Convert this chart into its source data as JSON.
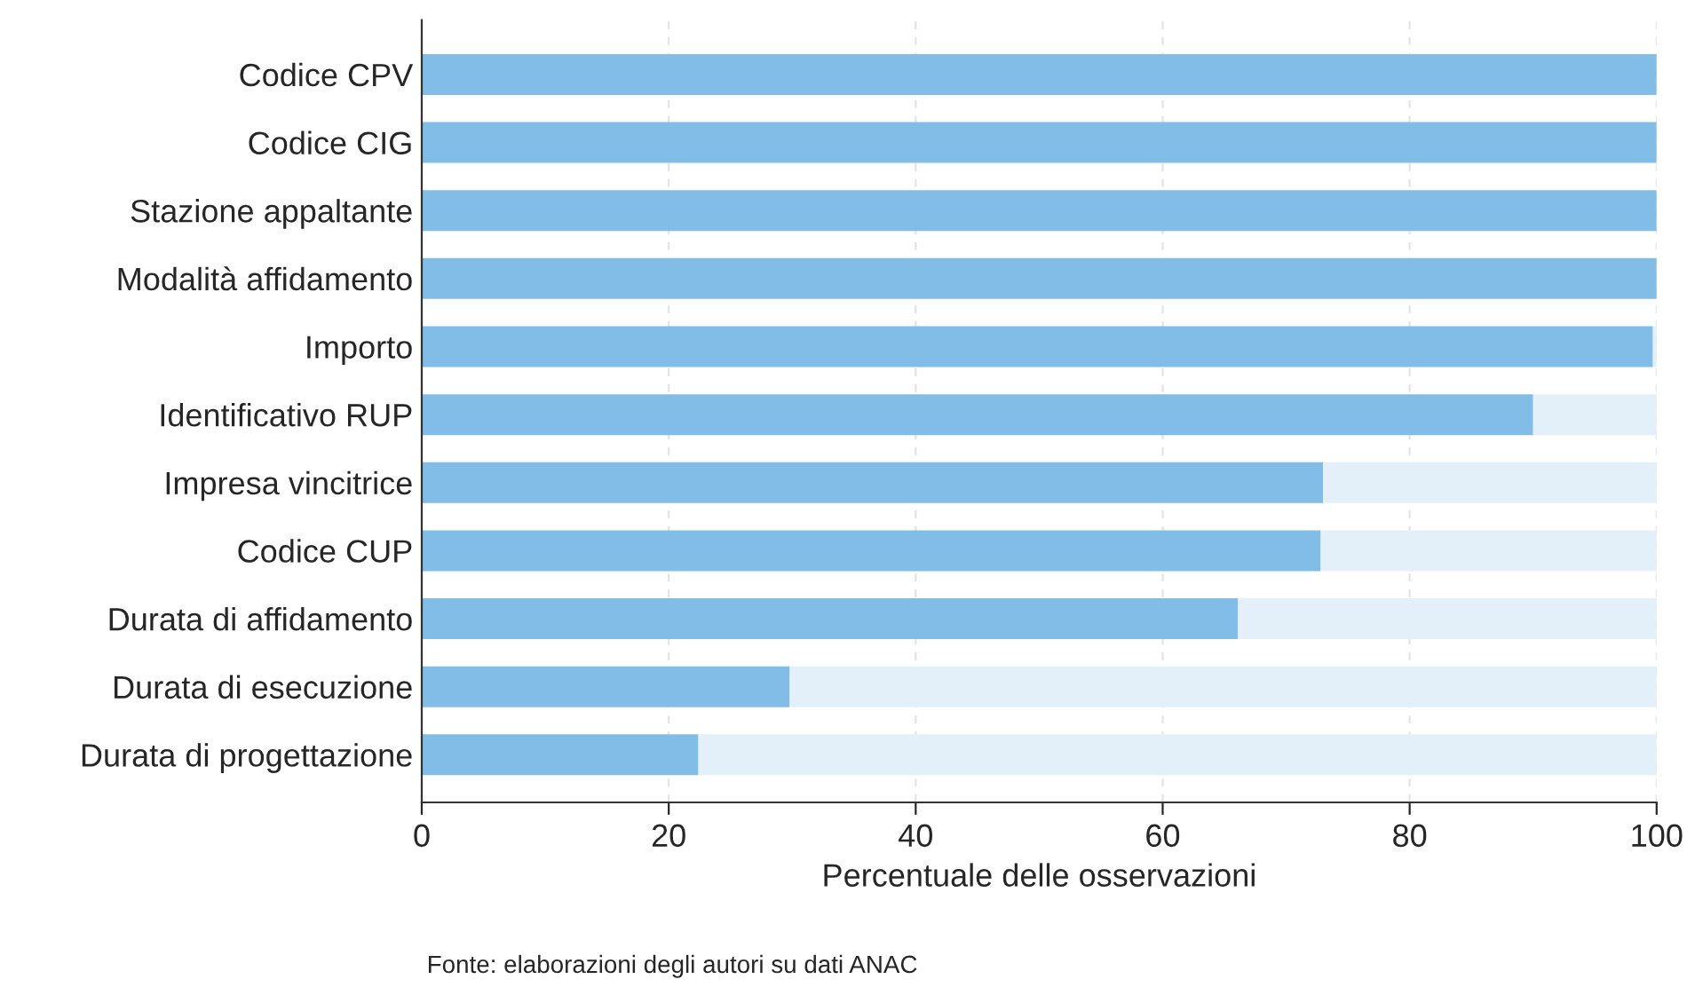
{
  "chart_data": {
    "type": "bar",
    "orientation": "horizontal",
    "stacked": true,
    "categories": [
      "Codice CPV",
      "Codice CIG",
      "Stazione appaltante",
      "Modalità affidamento",
      "Importo",
      "Identificativo RUP",
      "Impresa vincitrice",
      "Codice CUP",
      "Durata di affidamento",
      "Durata di esecuzione",
      "Durata di progettazione"
    ],
    "series": [
      {
        "color": "#82bde8",
        "values": [
          100,
          100,
          100,
          100,
          99.7,
          90.0,
          73.0,
          72.8,
          66.1,
          29.8,
          22.4
        ]
      },
      {
        "color": "#e3f0fa",
        "values": [
          0,
          0,
          0,
          0,
          0.3,
          10.0,
          27.0,
          27.2,
          33.9,
          70.2,
          77.6
        ]
      }
    ],
    "xlim": [
      0,
      100
    ],
    "xticks": [
      0,
      20,
      40,
      60,
      80,
      100
    ],
    "grid": "x",
    "xlabel": "Percentuale delle osservazioni",
    "annotations": [
      "Fonte: elaborazioni degli autori su dati ANAC"
    ]
  }
}
